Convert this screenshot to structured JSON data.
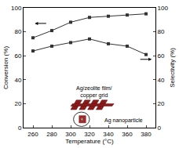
{
  "chart_data": {
    "type": "line",
    "x_label": "Temperature (°C)",
    "y_label": "Conversion (%)",
    "y2_label": "Selectivity (%)",
    "x": [
      260,
      280,
      300,
      320,
      340,
      360,
      380
    ],
    "series": [
      {
        "color": "#333333",
        "marker": "square",
        "line_style": "solid",
        "values": [
          75,
          81,
          88,
          92,
          93,
          94,
          95
        ]
      },
      {
        "color": "#333333",
        "marker": "square",
        "line_style": "solid",
        "axis": "y2",
        "values": [
          64,
          68,
          71,
          74,
          70,
          68,
          61
        ]
      }
    ],
    "xlim": [
      250,
      390
    ],
    "xticks": [
      260,
      280,
      300,
      320,
      340,
      360,
      380
    ],
    "ylim": [
      0,
      100
    ],
    "yticks": [
      0,
      20,
      40,
      60,
      80,
      100
    ],
    "y2lim": [
      0,
      100
    ],
    "y2ticks": [
      0,
      20,
      40,
      60,
      80,
      100
    ],
    "grid": false,
    "annotations": [
      "Ag/zeolite film/\ncopper grid",
      "Ag nanoparticle"
    ]
  }
}
